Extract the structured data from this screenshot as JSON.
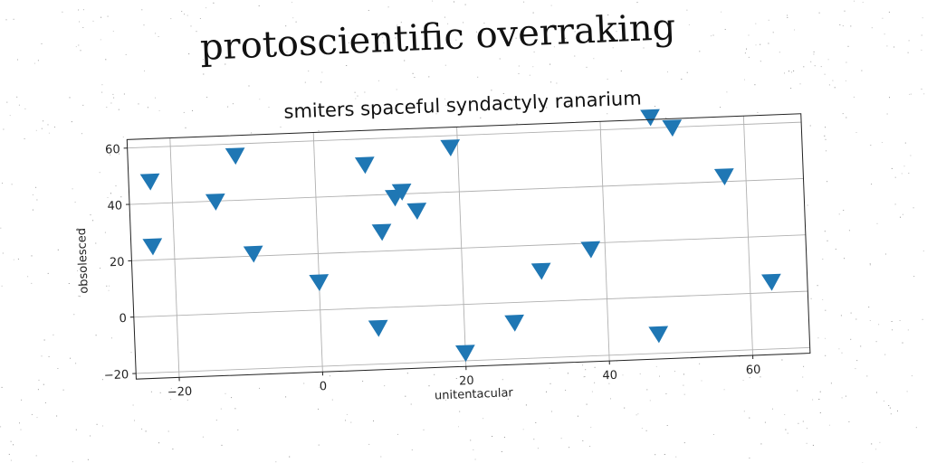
{
  "page": {
    "main_title": "protoscientific overraking"
  },
  "chart_data": {
    "type": "scatter",
    "title": "smiters spaceful syndactyly ranarium",
    "xlabel": "unitentacular",
    "ylabel": "obsolesced",
    "xlim": [
      -26,
      68
    ],
    "ylim": [
      -22,
      63
    ],
    "xticks": [
      -20,
      0,
      20,
      40,
      60
    ],
    "yticks": [
      -20,
      0,
      20,
      40,
      60
    ],
    "xtick_labels": [
      "−20",
      "0",
      "20",
      "40",
      "60"
    ],
    "ytick_labels": [
      "−20",
      "0",
      "20",
      "40",
      "60"
    ],
    "grid": true,
    "marker": "triangle-down",
    "color": "#1f77b4",
    "series": [
      {
        "name": "",
        "points": [
          {
            "x": -23,
            "y": 48
          },
          {
            "x": -23,
            "y": 25
          },
          {
            "x": -14,
            "y": 40
          },
          {
            "x": -11,
            "y": 56
          },
          {
            "x": -9,
            "y": 21
          },
          {
            "x": 0,
            "y": 10
          },
          {
            "x": 7,
            "y": 51
          },
          {
            "x": 8,
            "y": -7
          },
          {
            "x": 9,
            "y": 27
          },
          {
            "x": 11,
            "y": 39
          },
          {
            "x": 12,
            "y": 41
          },
          {
            "x": 14,
            "y": 34
          },
          {
            "x": 19,
            "y": 56
          },
          {
            "x": 20,
            "y": -17
          },
          {
            "x": 27,
            "y": -7
          },
          {
            "x": 31,
            "y": 11
          },
          {
            "x": 38,
            "y": 18
          },
          {
            "x": 47,
            "y": -13
          },
          {
            "x": 47,
            "y": 64
          },
          {
            "x": 50,
            "y": 60
          },
          {
            "x": 57,
            "y": 42
          },
          {
            "x": 63,
            "y": 4
          }
        ]
      }
    ]
  }
}
